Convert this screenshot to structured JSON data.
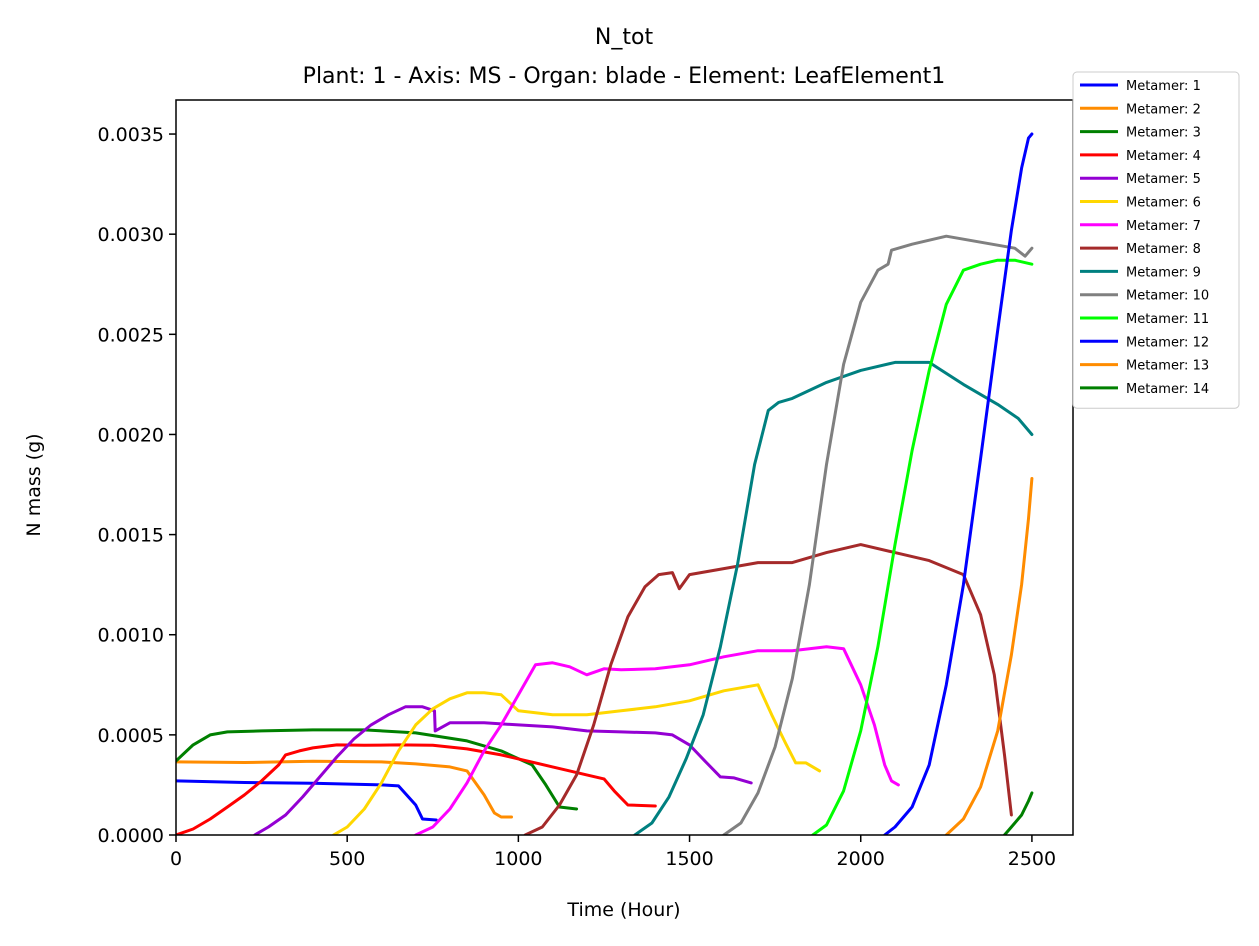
{
  "chart_data": {
    "type": "line",
    "title": "N_tot",
    "subtitle": "Plant: 1 - Axis: MS - Organ: blade - Element: LeafElement1",
    "xlabel": "Time (Hour)",
    "ylabel": "N mass (g)",
    "xlim": [
      0,
      2620
    ],
    "ylim": [
      0,
      0.00367
    ],
    "x_ticks": [
      0,
      500,
      1000,
      1500,
      2000,
      2500
    ],
    "x_tick_labels": [
      "0",
      "500",
      "1000",
      "1500",
      "2000",
      "2500"
    ],
    "y_ticks": [
      0,
      0.0005,
      0.001,
      0.0015,
      0.002,
      0.0025,
      0.003,
      0.0035
    ],
    "y_tick_labels": [
      "0.0000",
      "0.0005",
      "0.0010",
      "0.0015",
      "0.0020",
      "0.0025",
      "0.0030",
      "0.0035"
    ],
    "grid": false,
    "legend_position": "top-right, outside plot",
    "series": [
      {
        "name": "Metamer: 1",
        "color": "#0000ff",
        "points": [
          [
            0,
            0.00027
          ],
          [
            200,
            0.000262
          ],
          [
            400,
            0.000258
          ],
          [
            600,
            0.00025
          ],
          [
            650,
            0.000245
          ],
          [
            700,
            0.00015
          ],
          [
            720,
            8e-05
          ],
          [
            760,
            7.5e-05
          ]
        ]
      },
      {
        "name": "Metamer: 2",
        "color": "#ff8c00",
        "points": [
          [
            0,
            0.000365
          ],
          [
            200,
            0.000362
          ],
          [
            400,
            0.000368
          ],
          [
            600,
            0.000365
          ],
          [
            700,
            0.000355
          ],
          [
            800,
            0.00034
          ],
          [
            850,
            0.00032
          ],
          [
            900,
            0.0002
          ],
          [
            930,
            0.00011
          ],
          [
            950,
            9e-05
          ],
          [
            980,
            9e-05
          ]
        ]
      },
      {
        "name": "Metamer: 3",
        "color": "#008000",
        "points": [
          [
            0,
            0.00037
          ],
          [
            50,
            0.00045
          ],
          [
            100,
            0.0005
          ],
          [
            150,
            0.000515
          ],
          [
            250,
            0.00052
          ],
          [
            400,
            0.000525
          ],
          [
            550,
            0.000525
          ],
          [
            700,
            0.00051
          ],
          [
            850,
            0.00047
          ],
          [
            950,
            0.00042
          ],
          [
            1040,
            0.00035
          ],
          [
            1080,
            0.00025
          ],
          [
            1120,
            0.00014
          ],
          [
            1170,
            0.00013
          ]
        ]
      },
      {
        "name": "Metamer: 4",
        "color": "#ff0000",
        "points": [
          [
            0,
            0
          ],
          [
            50,
            3e-05
          ],
          [
            100,
            8e-05
          ],
          [
            150,
            0.00014
          ],
          [
            200,
            0.0002
          ],
          [
            250,
            0.00027
          ],
          [
            300,
            0.00035
          ],
          [
            320,
            0.0004
          ],
          [
            360,
            0.00042
          ],
          [
            400,
            0.000435
          ],
          [
            470,
            0.00045
          ],
          [
            550,
            0.000448
          ],
          [
            650,
            0.00045
          ],
          [
            750,
            0.000448
          ],
          [
            850,
            0.00043
          ],
          [
            950,
            0.0004
          ],
          [
            1000,
            0.00038
          ],
          [
            1100,
            0.00034
          ],
          [
            1200,
            0.0003
          ],
          [
            1250,
            0.00028
          ],
          [
            1280,
            0.00022
          ],
          [
            1320,
            0.00015
          ],
          [
            1400,
            0.000145
          ]
        ]
      },
      {
        "name": "Metamer: 5",
        "color": "#9400d3",
        "points": [
          [
            230,
            0
          ],
          [
            270,
            4e-05
          ],
          [
            320,
            0.0001
          ],
          [
            370,
            0.00019
          ],
          [
            420,
            0.00029
          ],
          [
            470,
            0.00039
          ],
          [
            520,
            0.00048
          ],
          [
            570,
            0.00055
          ],
          [
            620,
            0.0006
          ],
          [
            670,
            0.00064
          ],
          [
            720,
            0.00064
          ],
          [
            755,
            0.00062
          ],
          [
            757,
            0.00052
          ],
          [
            800,
            0.00056
          ],
          [
            900,
            0.00056
          ],
          [
            1000,
            0.00055
          ],
          [
            1100,
            0.00054
          ],
          [
            1200,
            0.00052
          ],
          [
            1300,
            0.000515
          ],
          [
            1400,
            0.00051
          ],
          [
            1450,
            0.0005
          ],
          [
            1500,
            0.00045
          ],
          [
            1550,
            0.00036
          ],
          [
            1590,
            0.00029
          ],
          [
            1630,
            0.000285
          ],
          [
            1680,
            0.00026
          ]
        ]
      },
      {
        "name": "Metamer: 6",
        "color": "#ffd700",
        "points": [
          [
            460,
            0
          ],
          [
            500,
            4e-05
          ],
          [
            550,
            0.00013
          ],
          [
            600,
            0.00026
          ],
          [
            650,
            0.00042
          ],
          [
            700,
            0.00055
          ],
          [
            750,
            0.00063
          ],
          [
            800,
            0.00068
          ],
          [
            850,
            0.00071
          ],
          [
            900,
            0.00071
          ],
          [
            950,
            0.0007
          ],
          [
            1000,
            0.00062
          ],
          [
            1100,
            0.0006
          ],
          [
            1200,
            0.0006
          ],
          [
            1300,
            0.00062
          ],
          [
            1400,
            0.00064
          ],
          [
            1500,
            0.00067
          ],
          [
            1600,
            0.00072
          ],
          [
            1700,
            0.00075
          ],
          [
            1740,
            0.0006
          ],
          [
            1780,
            0.00046
          ],
          [
            1810,
            0.00036
          ],
          [
            1840,
            0.00036
          ],
          [
            1880,
            0.00032
          ]
        ]
      },
      {
        "name": "Metamer: 7",
        "color": "#ff00ff",
        "points": [
          [
            700,
            0
          ],
          [
            750,
            4e-05
          ],
          [
            800,
            0.00013
          ],
          [
            850,
            0.00026
          ],
          [
            900,
            0.00042
          ],
          [
            950,
            0.00055
          ],
          [
            1000,
            0.0007
          ],
          [
            1050,
            0.00085
          ],
          [
            1100,
            0.00086
          ],
          [
            1150,
            0.00084
          ],
          [
            1200,
            0.0008
          ],
          [
            1250,
            0.00083
          ],
          [
            1300,
            0.000825
          ],
          [
            1400,
            0.00083
          ],
          [
            1500,
            0.00085
          ],
          [
            1600,
            0.00089
          ],
          [
            1700,
            0.00092
          ],
          [
            1800,
            0.00092
          ],
          [
            1900,
            0.00094
          ],
          [
            1950,
            0.00093
          ],
          [
            2000,
            0.00075
          ],
          [
            2040,
            0.00055
          ],
          [
            2070,
            0.00035
          ],
          [
            2090,
            0.00027
          ],
          [
            2110,
            0.00025
          ]
        ]
      },
      {
        "name": "Metamer: 8",
        "color": "#a52a2a",
        "points": [
          [
            1020,
            0
          ],
          [
            1070,
            4e-05
          ],
          [
            1120,
            0.00015
          ],
          [
            1170,
            0.0003
          ],
          [
            1220,
            0.00055
          ],
          [
            1270,
            0.00085
          ],
          [
            1320,
            0.00109
          ],
          [
            1370,
            0.00124
          ],
          [
            1410,
            0.0013
          ],
          [
            1450,
            0.00131
          ],
          [
            1470,
            0.00123
          ],
          [
            1500,
            0.0013
          ],
          [
            1600,
            0.00133
          ],
          [
            1700,
            0.00136
          ],
          [
            1800,
            0.00136
          ],
          [
            1900,
            0.00141
          ],
          [
            2000,
            0.00145
          ],
          [
            2100,
            0.00141
          ],
          [
            2200,
            0.00137
          ],
          [
            2300,
            0.0013
          ],
          [
            2350,
            0.0011
          ],
          [
            2390,
            0.0008
          ],
          [
            2420,
            0.0004
          ],
          [
            2440,
            0.0001
          ]
        ]
      },
      {
        "name": "Metamer: 9",
        "color": "#008080",
        "points": [
          [
            1340,
            0
          ],
          [
            1390,
            6e-05
          ],
          [
            1440,
            0.00019
          ],
          [
            1490,
            0.00038
          ],
          [
            1540,
            0.0006
          ],
          [
            1590,
            0.00094
          ],
          [
            1640,
            0.00135
          ],
          [
            1690,
            0.00185
          ],
          [
            1730,
            0.00212
          ],
          [
            1760,
            0.00216
          ],
          [
            1800,
            0.00218
          ],
          [
            1900,
            0.00226
          ],
          [
            2000,
            0.00232
          ],
          [
            2100,
            0.00236
          ],
          [
            2200,
            0.00236
          ],
          [
            2300,
            0.00225
          ],
          [
            2400,
            0.00215
          ],
          [
            2460,
            0.00208
          ],
          [
            2500,
            0.002
          ]
        ]
      },
      {
        "name": "Metamer: 10",
        "color": "#808080",
        "points": [
          [
            1600,
            0
          ],
          [
            1650,
            6e-05
          ],
          [
            1700,
            0.00021
          ],
          [
            1750,
            0.00044
          ],
          [
            1800,
            0.00078
          ],
          [
            1850,
            0.00125
          ],
          [
            1900,
            0.00185
          ],
          [
            1950,
            0.00235
          ],
          [
            2000,
            0.00266
          ],
          [
            2050,
            0.00282
          ],
          [
            2080,
            0.00285
          ],
          [
            2090,
            0.00292
          ],
          [
            2150,
            0.00295
          ],
          [
            2250,
            0.00299
          ],
          [
            2350,
            0.00296
          ],
          [
            2450,
            0.00293
          ],
          [
            2480,
            0.00289
          ],
          [
            2500,
            0.00293
          ]
        ]
      },
      {
        "name": "Metamer: 11",
        "color": "#00ff00",
        "points": [
          [
            1860,
            0
          ],
          [
            1900,
            5e-05
          ],
          [
            1950,
            0.00022
          ],
          [
            2000,
            0.00052
          ],
          [
            2050,
            0.00094
          ],
          [
            2100,
            0.00145
          ],
          [
            2150,
            0.00192
          ],
          [
            2200,
            0.00232
          ],
          [
            2250,
            0.00265
          ],
          [
            2300,
            0.00282
          ],
          [
            2350,
            0.00285
          ],
          [
            2400,
            0.00287
          ],
          [
            2450,
            0.00287
          ],
          [
            2500,
            0.00285
          ]
        ]
      },
      {
        "name": "Metamer: 12",
        "color": "#0000ff",
        "points": [
          [
            2070,
            0
          ],
          [
            2100,
            4e-05
          ],
          [
            2150,
            0.00014
          ],
          [
            2200,
            0.00035
          ],
          [
            2250,
            0.00075
          ],
          [
            2300,
            0.00125
          ],
          [
            2350,
            0.00188
          ],
          [
            2400,
            0.00252
          ],
          [
            2440,
            0.00302
          ],
          [
            2470,
            0.00333
          ],
          [
            2490,
            0.00348
          ],
          [
            2500,
            0.0035
          ]
        ]
      },
      {
        "name": "Metamer: 13",
        "color": "#ff8c00",
        "points": [
          [
            2250,
            0
          ],
          [
            2300,
            8e-05
          ],
          [
            2350,
            0.00024
          ],
          [
            2400,
            0.00052
          ],
          [
            2440,
            0.0009
          ],
          [
            2470,
            0.00125
          ],
          [
            2490,
            0.00158
          ],
          [
            2500,
            0.00178
          ]
        ]
      },
      {
        "name": "Metamer: 14",
        "color": "#008000",
        "points": [
          [
            2420,
            0
          ],
          [
            2440,
            4e-05
          ],
          [
            2470,
            0.0001
          ],
          [
            2490,
            0.00017
          ],
          [
            2500,
            0.00021
          ]
        ]
      }
    ]
  }
}
